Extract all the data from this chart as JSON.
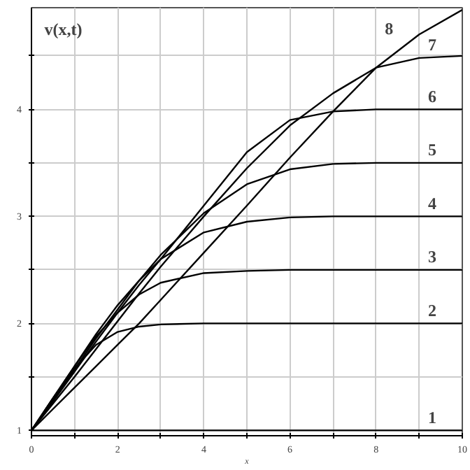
{
  "chart_data": {
    "type": "line",
    "ylabel": "v(x,t)",
    "xlabel": "x",
    "x": [
      0,
      0.5,
      1,
      1.5,
      2,
      2.5,
      3,
      4,
      5,
      6,
      7,
      8,
      9,
      10
    ],
    "series": [
      {
        "name": "1",
        "color": "#000000",
        "values": [
          1,
          1,
          1,
          1,
          1,
          1,
          1,
          1,
          1,
          1,
          1,
          1,
          1,
          1
        ]
      },
      {
        "name": "2",
        "color": "#000000",
        "values": [
          1,
          1.3,
          1.58,
          1.8,
          1.92,
          1.97,
          1.99,
          2,
          2,
          2,
          2,
          2,
          2,
          2
        ]
      },
      {
        "name": "3",
        "color": "#000000",
        "values": [
          1,
          1.3,
          1.6,
          1.88,
          2.1,
          2.27,
          2.38,
          2.47,
          2.49,
          2.5,
          2.5,
          2.5,
          2.5,
          2.5
        ]
      },
      {
        "name": "4",
        "color": "#000000",
        "values": [
          1,
          1.3,
          1.6,
          1.9,
          2.17,
          2.4,
          2.6,
          2.85,
          2.95,
          2.99,
          3,
          3,
          3,
          3
        ]
      },
      {
        "name": "5",
        "color": "#000000",
        "values": [
          1,
          1.28,
          1.57,
          1.86,
          2.13,
          2.4,
          2.64,
          3.03,
          3.3,
          3.44,
          3.49,
          3.5,
          3.5,
          3.5
        ]
      },
      {
        "name": "6",
        "color": "#000000",
        "values": [
          1,
          1.27,
          1.55,
          1.83,
          2.1,
          2.36,
          2.6,
          3.1,
          3.6,
          3.9,
          3.98,
          4,
          4,
          4
        ]
      },
      {
        "name": "7",
        "color": "#000000",
        "values": [
          1,
          1.25,
          1.5,
          1.76,
          2.02,
          2.28,
          2.53,
          3,
          3.45,
          3.85,
          4.15,
          4.39,
          4.48,
          4.5
        ]
      },
      {
        "name": "8",
        "color": "#000000",
        "values": [
          1,
          1.2,
          1.4,
          1.6,
          1.8,
          2,
          2.22,
          2.66,
          3.1,
          3.55,
          3.98,
          4.39,
          4.7,
          4.93
        ]
      }
    ],
    "xlim": [
      0,
      10
    ],
    "ylim": [
      0.95,
      4.95
    ],
    "xticks": [
      0,
      {
        "value": 1,
        "label": null
      },
      2,
      {
        "value": 3,
        "label": null
      },
      4,
      {
        "value": 5,
        "label": null
      },
      6,
      {
        "value": 7,
        "label": null
      },
      8,
      {
        "value": 9,
        "label": null
      },
      10
    ],
    "yticks": [
      1,
      {
        "value": 1.5,
        "label": null
      },
      2,
      {
        "value": 2.5,
        "label": null
      },
      3,
      {
        "value": 3.5,
        "label": null
      },
      4,
      {
        "value": 4.5,
        "label": null
      }
    ],
    "grid": true,
    "marker": "none",
    "line_style": "solid"
  }
}
